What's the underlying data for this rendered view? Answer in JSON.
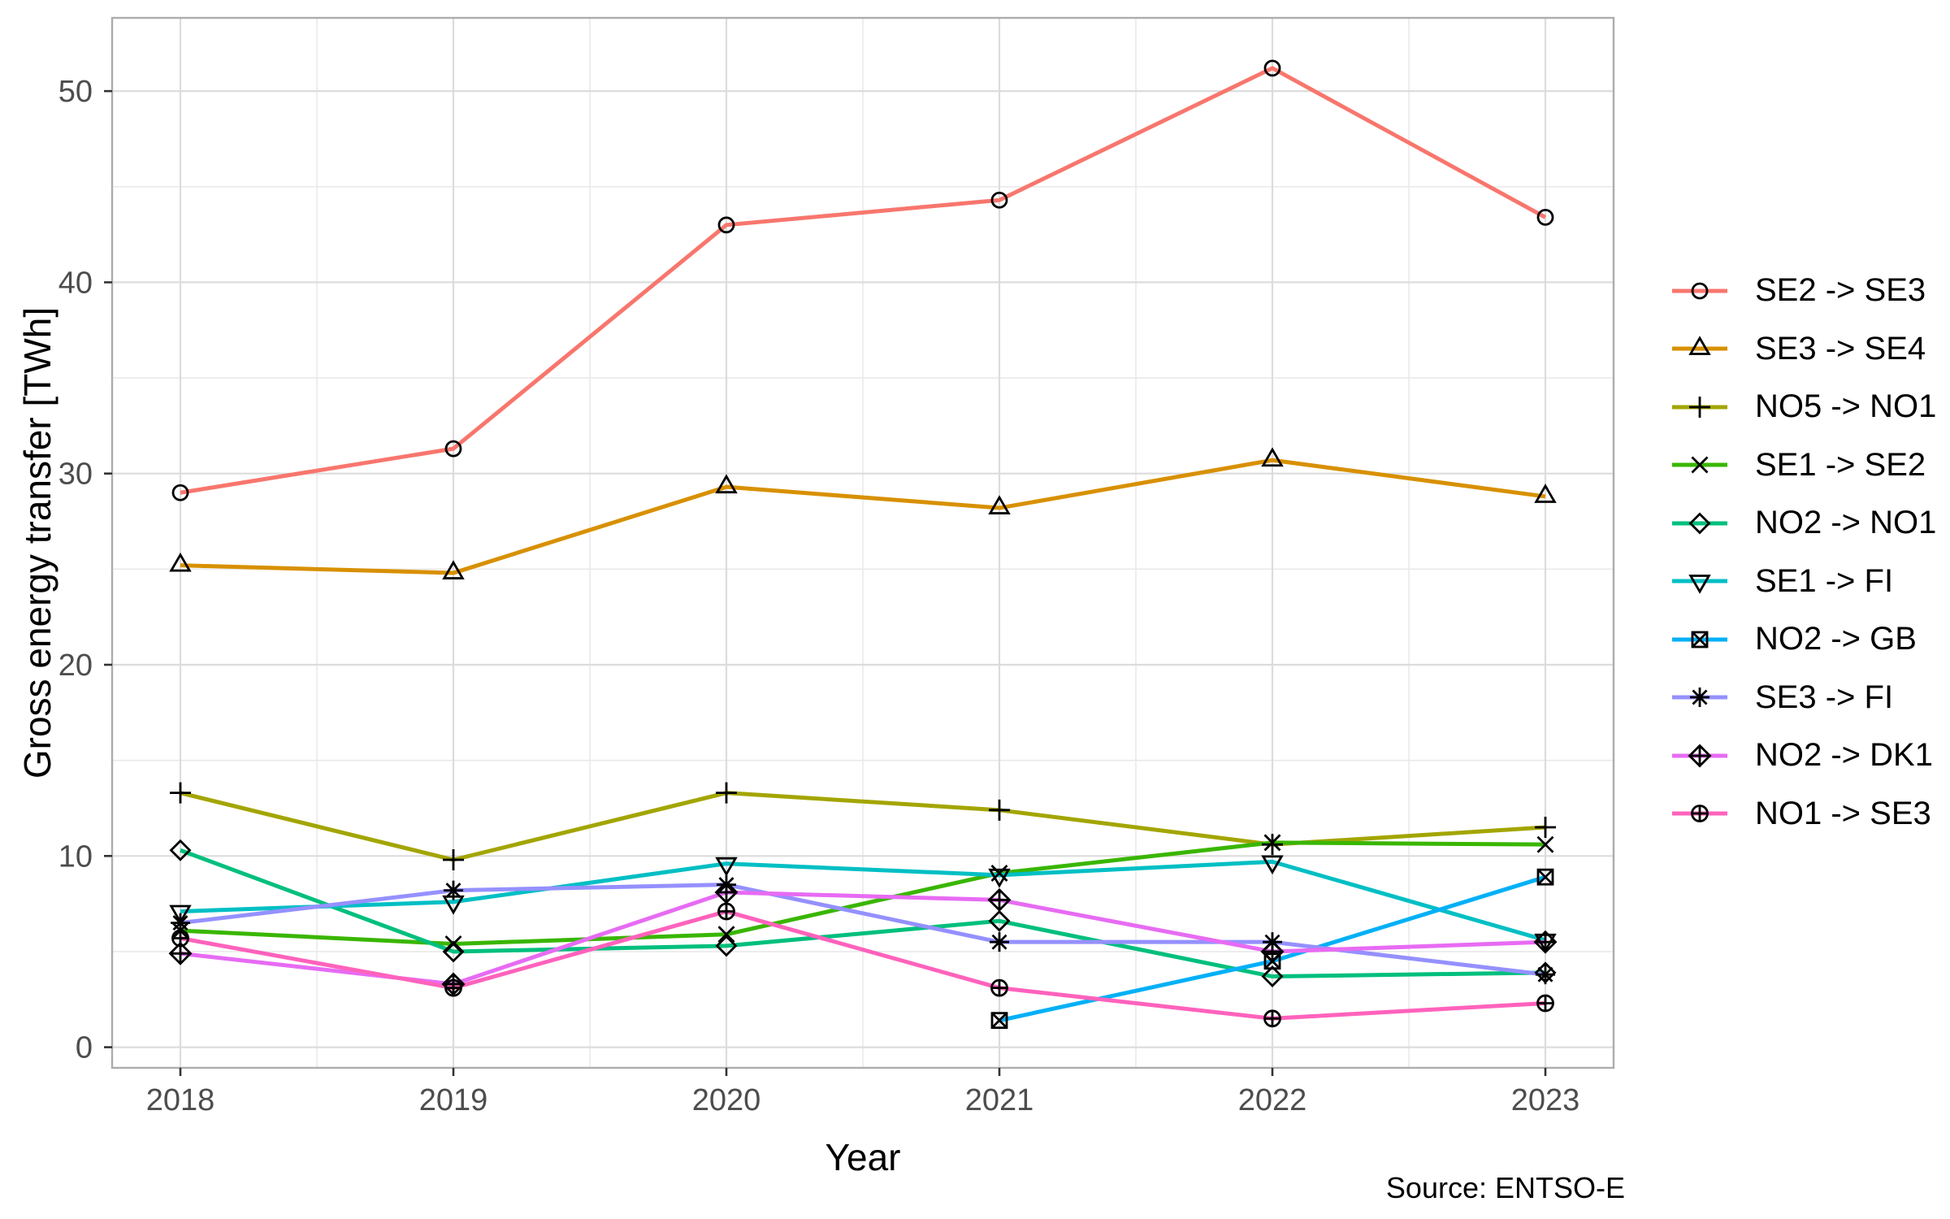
{
  "chart_data": {
    "type": "line",
    "title": "",
    "xlabel": "Year",
    "ylabel": "Gross energy transfer [TWh]",
    "caption": "Source: ENTSO-E",
    "x": [
      2018,
      2019,
      2020,
      2021,
      2022,
      2023
    ],
    "x_tick_labels": [
      "2018",
      "2019",
      "2020",
      "2021",
      "2022",
      "2023"
    ],
    "y_ticks": [
      0,
      10,
      20,
      30,
      40,
      50
    ],
    "y_minor_ticks": [
      5,
      15,
      25,
      35,
      45
    ],
    "ylim": [
      -1.1,
      53.8
    ],
    "grid": "major+minor",
    "legend_position": "right",
    "colors": {
      "grid_major": "#DCDCDC",
      "grid_minor": "#E9E9E9",
      "panel_border": "#ADADAD",
      "tick_mark": "#333333",
      "tick_label": "#4D4D4D",
      "marker_stroke": "#000000"
    },
    "series": [
      {
        "name": "SE2 -> SE3",
        "color": "#F8766D",
        "marker": "circle",
        "values": [
          29.0,
          31.3,
          43.0,
          44.3,
          51.2,
          43.4
        ]
      },
      {
        "name": "SE3 -> SE4",
        "color": "#D89000",
        "marker": "triangle-up",
        "values": [
          25.2,
          24.8,
          29.3,
          28.2,
          30.7,
          28.8
        ]
      },
      {
        "name": "NO5 -> NO1",
        "color": "#A3A500",
        "marker": "plus",
        "values": [
          13.3,
          9.8,
          13.3,
          12.4,
          10.6,
          11.5
        ]
      },
      {
        "name": "SE1 -> SE2",
        "color": "#39B600",
        "marker": "x",
        "values": [
          6.1,
          5.4,
          5.9,
          9.1,
          10.7,
          10.6
        ]
      },
      {
        "name": "NO2 -> NO1",
        "color": "#00BF7D",
        "marker": "diamond",
        "values": [
          10.3,
          5.0,
          5.3,
          6.6,
          3.7,
          3.9
        ]
      },
      {
        "name": "SE1 -> FI",
        "color": "#00BFC4",
        "marker": "triangle-down",
        "values": [
          7.1,
          7.6,
          9.6,
          9.0,
          9.7,
          5.6
        ]
      },
      {
        "name": "NO2 -> GB",
        "color": "#00B0F6",
        "marker": "square-x",
        "values": [
          null,
          null,
          null,
          1.4,
          4.5,
          8.9
        ]
      },
      {
        "name": "SE3 -> FI",
        "color": "#9590FF",
        "marker": "asterisk",
        "values": [
          6.5,
          8.2,
          8.5,
          5.5,
          5.5,
          3.8
        ]
      },
      {
        "name": "NO2 -> DK1",
        "color": "#E76BF3",
        "marker": "diamond-plus",
        "values": [
          4.9,
          3.3,
          8.1,
          7.7,
          5.0,
          5.5
        ]
      },
      {
        "name": "NO1 -> SE3",
        "color": "#FF62BC",
        "marker": "circle-plus",
        "values": [
          5.7,
          3.1,
          7.1,
          3.1,
          1.5,
          2.3
        ]
      }
    ]
  }
}
